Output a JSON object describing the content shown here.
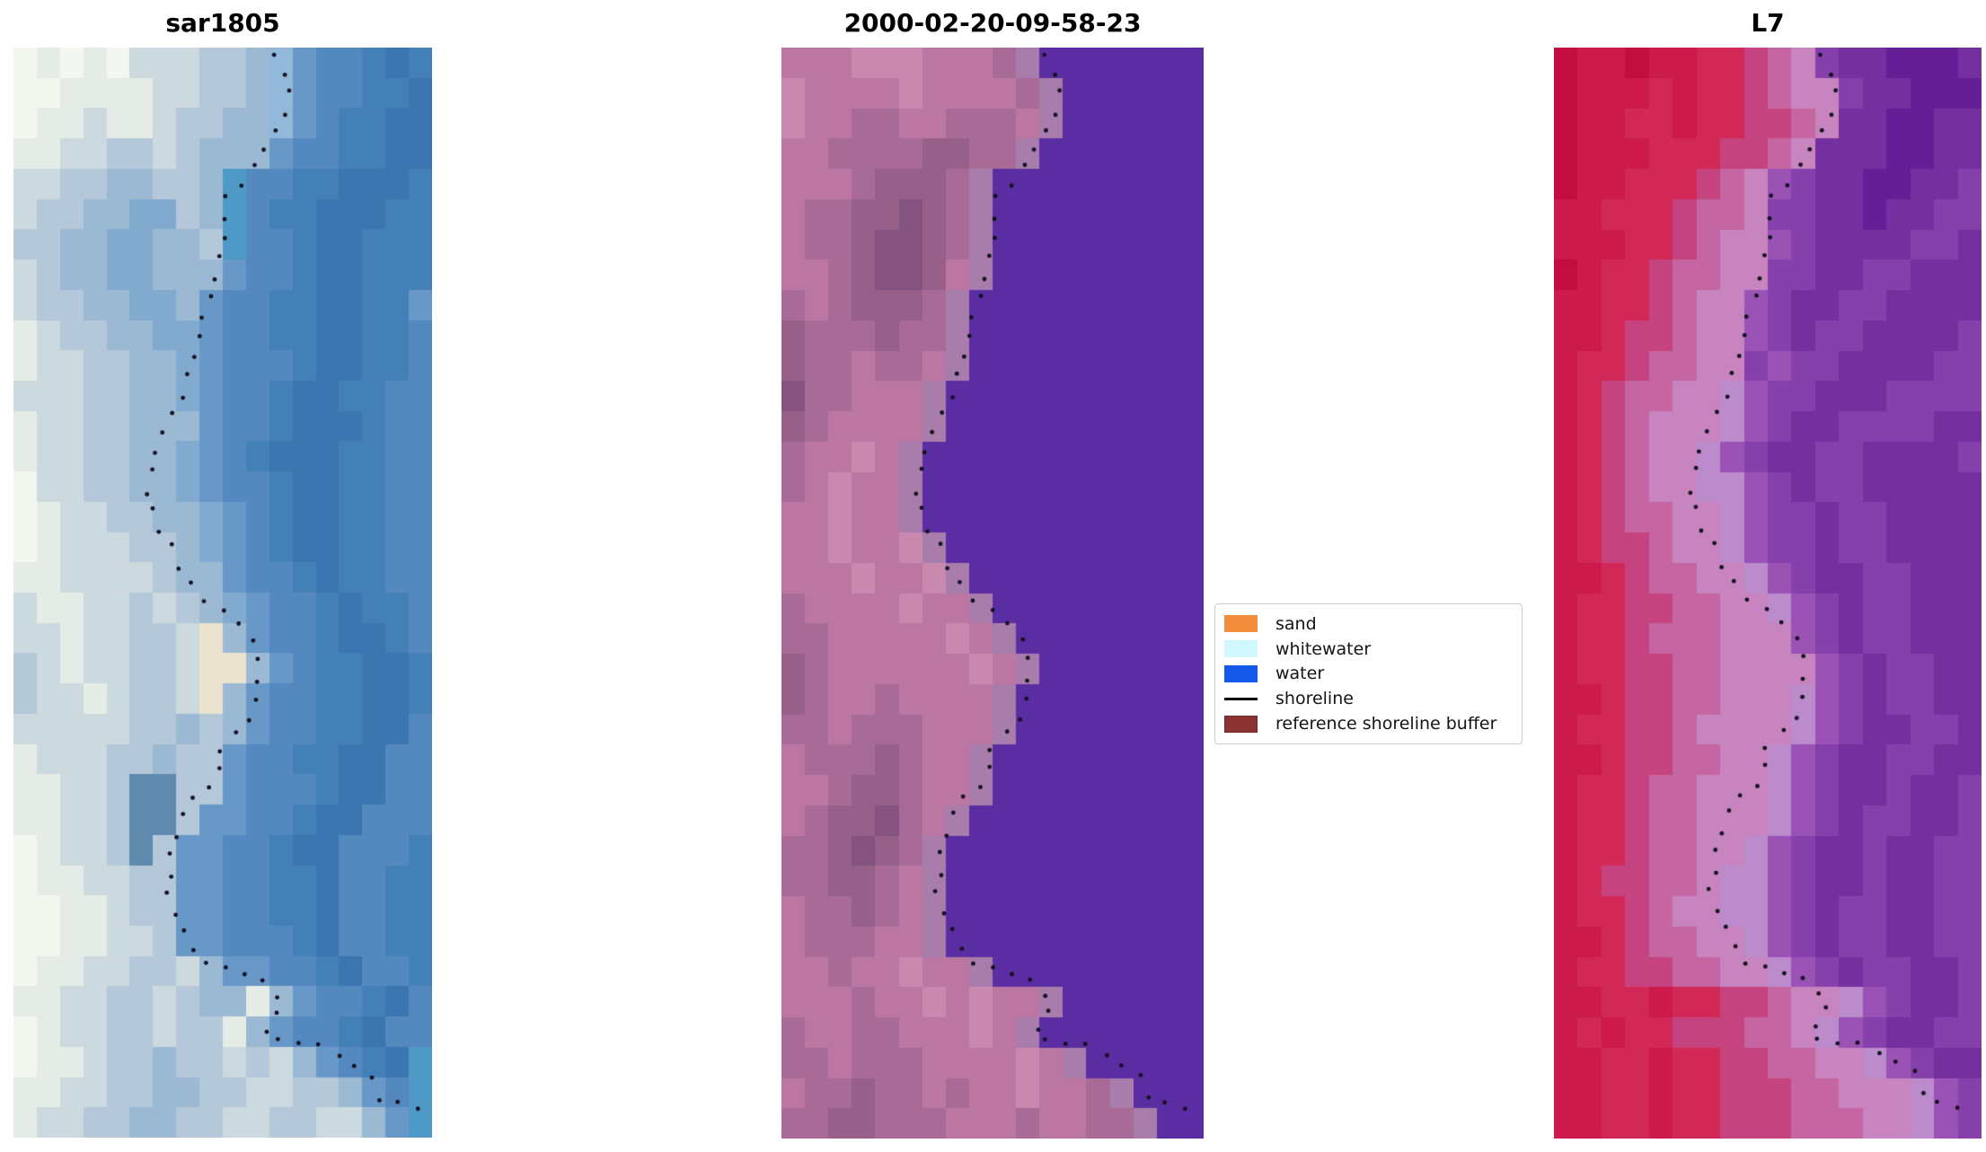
{
  "figure": {
    "background": "#ffffff"
  },
  "chart_data": {
    "type": "image",
    "description": "Three-panel satellite shoreline detection figure: SAR RGB image, classified image, and Landsat 7 false-color image, each overlaid with the same dotted detected shoreline.",
    "panels": [
      {
        "title": "sar1805",
        "kind": "rgb-satellite-image",
        "cols": 18,
        "rows": 36,
        "palette": {
          "a": "#f4f6f0",
          "b": "#e5ece6",
          "c": "#ccd9de",
          "d": "#b4c8d9",
          "e": "#9cb9d4",
          "f": "#81aace",
          "g": "#6898c7",
          "h": "#5489bf",
          "i": "#4480b8",
          "j": "#3b76b0",
          "k": "#4f99c6",
          "l": "#92b8da",
          "m": "#eae3cd",
          "n": "#5f89ad"
        },
        "grid": [
          "ababacccddelghhiji",
          "aabbbbccddelghhiij",
          "abbcbbcddeelghiijj",
          "bbccddcdeeeghhiijj",
          "ccddeeddekhhiijjji",
          "cddeeffdekhiijjjii",
          "ddeeffeedkhhijjiii",
          "cdeeffeeeghhijjiii",
          "cddeeffeghhiijjiig",
          "bcddeeffghhiijjiih",
          "bccddeefghhhijjiih",
          "cccddeefghhijjiihh",
          "bccddeeeghhijjjihh",
          "bccddeefghijjjiihh",
          "accddeefghhijjiihh",
          "abccddeefghijjiihh",
          "abcccddefghijjiihh",
          "bbccccdeeghhijiihh",
          "cbbccdcdefghhijiih",
          "ccbccddcmeghhijjih",
          "dcbccddcmmeghiijji",
          "dccbcddcmeghhiijji",
          "cccccddedeghhiijjh",
          "bcccddeddghhiijjhh",
          "bbccdnnddghhhijjhh",
          "bbccdnndgghhijjhhh",
          "abccdndgghhijjhhhi",
          "abbccddgghhiijhhii",
          "aabbcddgghhiijhhii",
          "aabbccdgghhhijhhii",
          "abbccddcegghhijhhi",
          "bbccddcdeebeghhijh",
          "abccddcddbeghhijhh",
          "abbcddeddcdceghijk",
          "bbccddeeddccddeghk",
          "bccddeeddccddccegk"
        ]
      },
      {
        "title": "2000-02-20-09-58-23",
        "kind": "classified-image",
        "cols": 18,
        "rows": 36,
        "palette": {
          "A": "#c989af",
          "B": "#bb77a2",
          "C": "#a86b97",
          "D": "#966089",
          "E": "#855380",
          "F": "#a97dab",
          "G": "#5b2da2"
        },
        "grid": [
          "BBBAAABBBCFGGGGGGG",
          "ABBBBABBBBCFGGGGGG",
          "ABBCCBBCCCBFGGGGGG",
          "BBCCCCDDCCFGGGGGGG",
          "BBBCDDDCFGGGGGGGGG",
          "BCCDDEDCFGGGGGGGGG",
          "BCCDEEDCFGGGGGGGGG",
          "BBCDEEDBFGGGGGGGGG",
          "CBCDDDCFGGGGGGGGGG",
          "DCCCDCCFGGGGGGGGGG",
          "DCCBCCBFGGGGGGGGGG",
          "ECCBBBFGGGGGGGGGGG",
          "DCBBBBFGGGGGGGGGGG",
          "CBBABFGGGGGGGGGGGG",
          "CBABBFGGGGGGGGGGGG",
          "BBABBFGGGGGGGGGGGG",
          "BBABBAFGGGGGGGGGGG",
          "BBBABBAFGGGGGGGGGG",
          "CBBBBABBFGGGGGGGGG",
          "CCBBBBBABFGGGGGGGG",
          "DCBBBBBBABFGGGGGGG",
          "DCBBCBBBBFGGGGGGGG",
          "CCBCCCBBBFGGGGGGGG",
          "BCCCDCBBFGGGGGGGGG",
          "BBCDDCBBFGGGGGGGGG",
          "BCDDECBFGGGGGGGGGG",
          "CCDEDCFGGGGGGGGGGG",
          "CCDDCBFGGGGGGGGGGG",
          "BCCDCBFGGGGGGGGGGG",
          "BCCCBBFGGGGGGGGGGG",
          "BBCBBABBFGGGGGGGGG",
          "BBBCBBABABBFGGGGGG",
          "CBBCCBBBABFGGGGGGG",
          "CCBCCCBBBBABFGGGGG",
          "BCCDCCBCBBABBCFGGG",
          "CCDDCCCBBBCBBCCFGG"
        ]
      },
      {
        "title": "L7",
        "kind": "false-color-satellite-image",
        "cols": 18,
        "rows": 36,
        "palette": {
          "P": "#c30d40",
          "Q": "#cb1a4b",
          "R": "#d22857",
          "S": "#c5447f",
          "T": "#c566a2",
          "U": "#c784be",
          "V": "#bb8bcb",
          "W": "#9a52b5",
          "X": "#8640ac",
          "Y": "#74309f",
          "Z": "#651f96"
        },
        "grid": [
          "PQQPQQRRSTUXYYZZZY",
          "PQQQRQRRSTUUXYYZZZ",
          "PQQRRQRRSSTUYYZZYY",
          "PQQQRRRSSTUYYYZZYY",
          "PQQRRRSTUWXYYZZYYX",
          "QQRRRSTTUXXYYZYYXX",
          "QQQRRSTUUWXYYYYXXY",
          "PQRRSTTUUXXYYXXYYY",
          "QQRRSTUUWXYYXXYYYY",
          "QQRSSTUUWXYXXYYYYX",
          "QRRSTTUUXWXXYYYYXX",
          "QRSTTUUVWXXYYYXXXX",
          "QRSTUUUVWXYYXXXXYY",
          "QRSTUUVWXYYXXYYYYX",
          "QRSTUUVVWXYXXYYYYY",
          "QRSTTUUVWXXYXXYYYY",
          "QRSSTUUVWXXYXXYYYY",
          "QQRSTTUUVWXYYXXYYY",
          "QRRSSTTUUVWXYXXYYY",
          "QRRSTTTUUUWXYXXYYY",
          "QRRSSTTUUUUWXYXXYY",
          "QQRSSTTUUUVWXYXXYY",
          "QRRSSTUUUUVWXYYXXY",
          "QQRSSTTUUVWXYYXXYY",
          "QRRSTTUUUVWXYYXYYX",
          "QRRSTTUUUVWXYXXYYX",
          "QRRSTTUUVWXYYXYYXX",
          "QRSSTTUVVWXYYXYYXX",
          "QRRSTUUVVWXYXXYYXX",
          "QQRSTTUUVWXYXXYYXX",
          "QRRSSTTUUVWXYXXYYX",
          "QQRRQRRSSTUUVWXYYX",
          "QRQRRSSSTTUVWXYYXX",
          "QQRRQRRSSTTUUVWXYY",
          "QQRRQRRSSSTTUUUVWX",
          "QQRRQRRSSSTTTUUVWX"
        ]
      }
    ],
    "shoreline": {
      "color": "#13101f",
      "dot_radius": 2.4,
      "dot_spacing": 23,
      "points": [
        [
          0.626,
          0.008
        ],
        [
          0.645,
          0.025
        ],
        [
          0.663,
          0.041
        ],
        [
          0.652,
          0.058
        ],
        [
          0.632,
          0.076
        ],
        [
          0.617,
          0.082
        ],
        [
          0.601,
          0.091
        ],
        [
          0.577,
          0.109
        ],
        [
          0.551,
          0.124
        ],
        [
          0.531,
          0.131
        ],
        [
          0.509,
          0.142
        ],
        [
          0.511,
          0.159
        ],
        [
          0.509,
          0.176
        ],
        [
          0.498,
          0.192
        ],
        [
          0.491,
          0.208
        ],
        [
          0.487,
          0.225
        ],
        [
          0.456,
          0.242
        ],
        [
          0.451,
          0.259
        ],
        [
          0.438,
          0.276
        ],
        [
          0.421,
          0.292
        ],
        [
          0.412,
          0.309
        ],
        [
          0.401,
          0.325
        ],
        [
          0.374,
          0.341
        ],
        [
          0.346,
          0.358
        ],
        [
          0.335,
          0.375
        ],
        [
          0.33,
          0.392
        ],
        [
          0.326,
          0.408
        ],
        [
          0.341,
          0.425
        ],
        [
          0.352,
          0.443
        ],
        [
          0.39,
          0.462
        ],
        [
          0.403,
          0.476
        ],
        [
          0.436,
          0.494
        ],
        [
          0.465,
          0.509
        ],
        [
          0.487,
          0.515
        ],
        [
          0.52,
          0.528
        ],
        [
          0.573,
          0.542
        ],
        [
          0.584,
          0.559
        ],
        [
          0.584,
          0.591
        ],
        [
          0.573,
          0.61
        ],
        [
          0.546,
          0.624
        ],
        [
          0.531,
          0.631
        ],
        [
          0.5,
          0.642
        ],
        [
          0.5,
          0.658
        ],
        [
          0.493,
          0.675
        ],
        [
          0.434,
          0.687
        ],
        [
          0.41,
          0.708
        ],
        [
          0.397,
          0.726
        ],
        [
          0.379,
          0.741
        ],
        [
          0.377,
          0.758
        ],
        [
          0.363,
          0.774
        ],
        [
          0.383,
          0.792
        ],
        [
          0.394,
          0.801
        ],
        [
          0.427,
          0.825
        ],
        [
          0.449,
          0.842
        ],
        [
          0.489,
          0.842
        ],
        [
          0.531,
          0.847
        ],
        [
          0.573,
          0.852
        ],
        [
          0.61,
          0.86
        ],
        [
          0.648,
          0.875
        ],
        [
          0.628,
          0.891
        ],
        [
          0.606,
          0.909
        ],
        [
          0.663,
          0.913
        ],
        [
          0.705,
          0.914
        ],
        [
          0.751,
          0.92
        ],
        [
          0.775,
          0.925
        ],
        [
          0.795,
          0.928
        ],
        [
          0.806,
          0.936
        ],
        [
          0.841,
          0.941
        ],
        [
          0.857,
          0.95
        ],
        [
          0.883,
          0.969
        ],
        [
          0.929,
          0.971
        ],
        [
          0.971,
          0.974
        ]
      ]
    },
    "legend": {
      "items": [
        {
          "label": "sand",
          "type": "patch",
          "color": "#f28d3e"
        },
        {
          "label": "whitewater",
          "type": "patch",
          "color": "#d2f8ff"
        },
        {
          "label": "water",
          "type": "patch",
          "color": "#1559e8"
        },
        {
          "label": "shoreline",
          "type": "line",
          "color": "#000000"
        },
        {
          "label": "reference shoreline buffer",
          "type": "patch",
          "color": "#8b3331",
          "border": "#702827"
        }
      ]
    }
  }
}
